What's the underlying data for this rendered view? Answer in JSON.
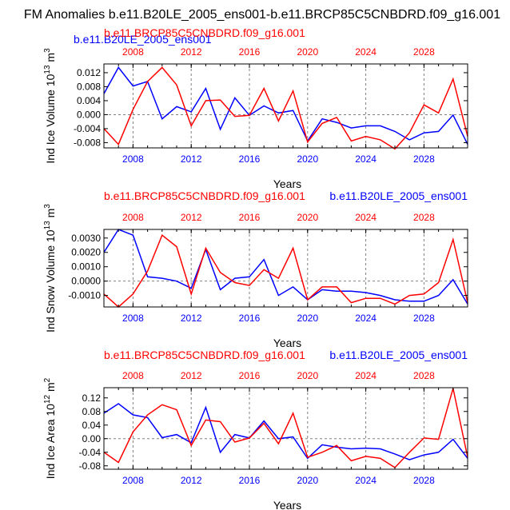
{
  "figure": {
    "title": "FM Anomalies b.e11.B20LE_2005_ens001-b.e11.BRCP85C5CNBDRD.f09_g16.001"
  },
  "colors": {
    "blue": "#0000ff",
    "red": "#ff0000",
    "axis": "#000000",
    "grid": "#808080"
  },
  "chart_data": [
    {
      "type": "line",
      "name": "ice-volume",
      "xlabel": "Years",
      "ylabel": "Ind Ice Volume 10",
      "ylabel_exp": "13",
      "ylabel_unit": " m",
      "ylabel_unit_exp": "3",
      "top_label_blue": "b.e11.B20LE_2005_ens001",
      "top_label_red": "b.e11.BRCP85C5CNBDRD.f09_g16.001",
      "xlim": [
        2006,
        2031
      ],
      "ylim": [
        -0.0095,
        0.0145
      ],
      "xticks": [
        "2008",
        "2012",
        "2016",
        "2020",
        "2024",
        "2028"
      ],
      "xtick_values": [
        2008,
        2012,
        2016,
        2020,
        2024,
        2028
      ],
      "yticks": [
        "0.012",
        "0.008",
        "0.004",
        "0.000",
        "-0.004",
        "-0.008"
      ],
      "ytick_values": [
        0.012,
        0.008,
        0.004,
        0.0,
        -0.004,
        -0.008
      ],
      "x": [
        2006,
        2007,
        2008,
        2009,
        2010,
        2011,
        2012,
        2013,
        2014,
        2015,
        2016,
        2017,
        2018,
        2019,
        2020,
        2021,
        2022,
        2023,
        2024,
        2025,
        2026,
        2027,
        2028,
        2029,
        2030,
        2031
      ],
      "series": [
        {
          "name": "b.e11.B20LE_2005_ens001",
          "color": "blue",
          "values": [
            0.006,
            0.0135,
            0.0082,
            0.0095,
            -0.0012,
            0.0023,
            0.0008,
            0.0075,
            -0.0042,
            0.0048,
            -0.0002,
            0.0025,
            0.0005,
            0.0012,
            -0.0075,
            -0.0012,
            -0.0022,
            -0.0038,
            -0.0032,
            -0.0032,
            -0.0048,
            -0.0072,
            -0.0052,
            -0.0048,
            -0.0001,
            -0.0085
          ]
        },
        {
          "name": "b.e11.BRCP85C5CNBDRD.f09_g16.001",
          "color": "red",
          "values": [
            -0.004,
            -0.0085,
            0.0015,
            0.0095,
            0.0135,
            0.0085,
            -0.0032,
            0.004,
            0.0042,
            -0.0005,
            -0.0002,
            0.0075,
            -0.0018,
            0.0068,
            -0.0078,
            -0.0025,
            -0.0008,
            -0.0075,
            -0.0062,
            -0.0072,
            -0.0098,
            -0.0052,
            0.0028,
            0.0005,
            0.0102,
            -0.0062
          ]
        }
      ]
    },
    {
      "type": "line",
      "name": "snow-volume",
      "xlabel": "Years",
      "ylabel": "Ind Snow Volume 10",
      "ylabel_exp": "13",
      "ylabel_unit": " m",
      "ylabel_unit_exp": "3",
      "top_label_blue": "b.e11.B20LE_2005_ens001",
      "top_label_red": "b.e11.BRCP85C5CNBDRD.f09_g16.001",
      "xlim": [
        2006,
        2031
      ],
      "ylim": [
        -0.0018,
        0.0036
      ],
      "xticks": [
        "2008",
        "2012",
        "2016",
        "2020",
        "2024",
        "2028"
      ],
      "xtick_values": [
        2008,
        2012,
        2016,
        2020,
        2024,
        2028
      ],
      "yticks": [
        "0.0030",
        "0.0020",
        "0.0010",
        "0.0000",
        "-0.0010"
      ],
      "ytick_values": [
        0.003,
        0.002,
        0.001,
        0.0,
        -0.001
      ],
      "x": [
        2006,
        2007,
        2008,
        2009,
        2010,
        2011,
        2012,
        2013,
        2014,
        2015,
        2016,
        2017,
        2018,
        2019,
        2020,
        2021,
        2022,
        2023,
        2024,
        2025,
        2026,
        2027,
        2028,
        2029,
        2030,
        2031
      ],
      "series": [
        {
          "name": "b.e11.B20LE_2005_ens001",
          "color": "blue",
          "values": [
            0.002,
            0.0036,
            0.0032,
            0.0003,
            0.0002,
            0.0,
            -0.0005,
            0.0022,
            -0.0006,
            0.0002,
            0.0003,
            0.0015,
            -0.001,
            -0.0004,
            -0.0013,
            -0.0006,
            -0.0007,
            -0.0007,
            -0.0008,
            -0.001,
            -0.0013,
            -0.0014,
            -0.0014,
            -0.001,
            0.0001,
            -0.0016
          ]
        },
        {
          "name": "b.e11.BRCP85C5CNBDRD.f09_g16.001",
          "color": "red",
          "values": [
            -0.0009,
            -0.0018,
            -0.0009,
            0.0007,
            0.0032,
            0.0024,
            -0.0009,
            0.0023,
            0.0006,
            -0.0001,
            -0.0003,
            0.0008,
            0.0002,
            0.0023,
            -0.0013,
            -0.0004,
            -0.0004,
            -0.0015,
            -0.0012,
            -0.0012,
            -0.0016,
            -0.001,
            -0.0009,
            -0.0001,
            0.0029,
            -0.0015
          ]
        }
      ]
    },
    {
      "type": "line",
      "name": "ice-area",
      "xlabel": "Years",
      "ylabel": "Ind Ice Area 10",
      "ylabel_exp": "12",
      "ylabel_unit": " m",
      "ylabel_unit_exp": "2",
      "top_label_blue": "b.e11.B20LE_2005_ens001",
      "top_label_red": "b.e11.BRCP85C5CNBDRD.f09_g16.001",
      "xlim": [
        2006,
        2031
      ],
      "ylim": [
        -0.09,
        0.15
      ],
      "xticks": [
        "2008",
        "2012",
        "2016",
        "2020",
        "2024",
        "2028"
      ],
      "xtick_values": [
        2008,
        2012,
        2016,
        2020,
        2024,
        2028
      ],
      "yticks": [
        "0.12",
        "0.08",
        "0.04",
        "0.00",
        "-0.04",
        "-0.08"
      ],
      "ytick_values": [
        0.12,
        0.08,
        0.04,
        0.0,
        -0.04,
        -0.08
      ],
      "x": [
        2006,
        2007,
        2008,
        2009,
        2010,
        2011,
        2012,
        2013,
        2014,
        2015,
        2016,
        2017,
        2018,
        2019,
        2020,
        2021,
        2022,
        2023,
        2024,
        2025,
        2026,
        2027,
        2028,
        2029,
        2030,
        2031
      ],
      "series": [
        {
          "name": "b.e11.B20LE_2005_ens001",
          "color": "blue",
          "values": [
            0.075,
            0.103,
            0.07,
            0.062,
            0.003,
            0.012,
            -0.012,
            0.092,
            -0.04,
            0.012,
            0.002,
            0.052,
            0.0,
            0.005,
            -0.058,
            -0.018,
            -0.025,
            -0.03,
            -0.028,
            -0.03,
            -0.045,
            -0.062,
            -0.048,
            -0.04,
            -0.002,
            -0.058
          ]
        },
        {
          "name": "b.e11.BRCP85C5CNBDRD.f09_g16.001",
          "color": "red",
          "values": [
            -0.04,
            -0.07,
            0.02,
            0.07,
            0.1,
            0.085,
            -0.02,
            0.055,
            0.05,
            -0.01,
            0.002,
            0.045,
            -0.015,
            0.075,
            -0.055,
            -0.04,
            -0.02,
            -0.065,
            -0.052,
            -0.058,
            -0.085,
            -0.04,
            0.002,
            -0.002,
            0.148,
            -0.055
          ]
        }
      ]
    }
  ]
}
